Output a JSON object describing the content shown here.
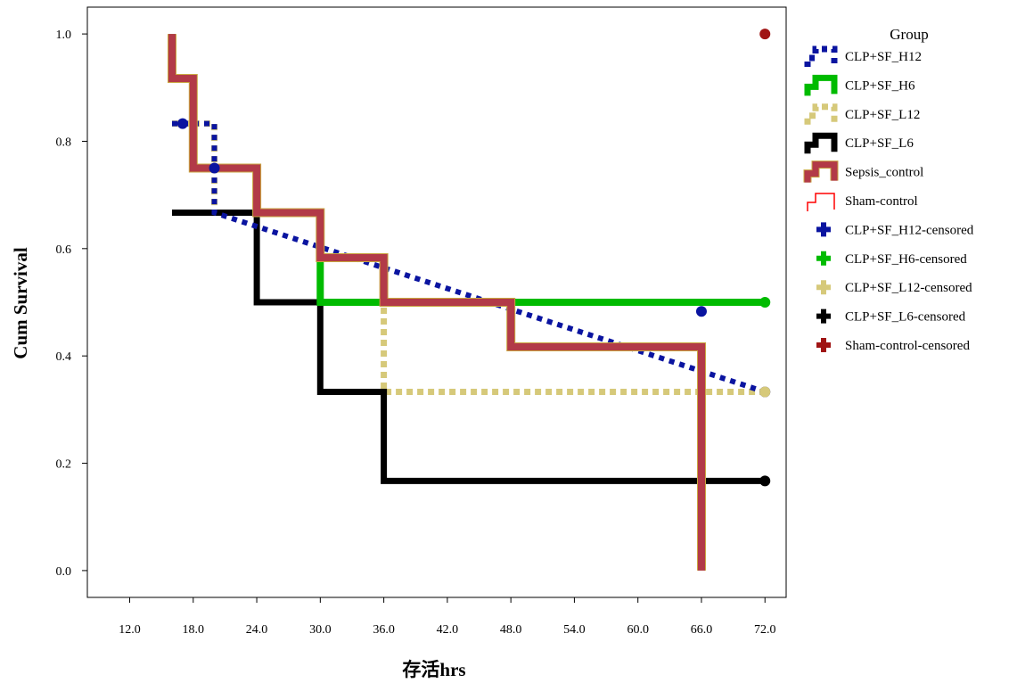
{
  "chart_data": {
    "type": "line",
    "subtype": "kaplan-meier",
    "title": "",
    "xlabel": "存活hrs",
    "ylabel": "Cum Survival",
    "xlim": [
      8,
      74
    ],
    "ylim": [
      -0.05,
      1.05
    ],
    "x_ticks": [
      "12.0",
      "18.0",
      "24.0",
      "30.0",
      "36.0",
      "42.0",
      "48.0",
      "54.0",
      "60.0",
      "66.0",
      "72.0"
    ],
    "y_ticks": [
      "0.0",
      "0.2",
      "0.4",
      "0.6",
      "0.8",
      "1.0"
    ],
    "grid": false,
    "legend_title": "Group",
    "legend_position": "right",
    "series": [
      {
        "name": "CLP+SF_H12",
        "color": "#0a14a0",
        "style": "dashed",
        "width": 6,
        "points": [
          [
            16,
            0.833
          ],
          [
            20,
            0.833
          ],
          [
            20,
            0.667
          ],
          [
            72,
            0.333
          ]
        ]
      },
      {
        "name": "CLP+SF_H6",
        "color": "#00bb00",
        "style": "solid",
        "width": 8,
        "points": [
          [
            16,
            1.0
          ],
          [
            16,
            0.917
          ],
          [
            18,
            0.917
          ],
          [
            18,
            0.75
          ],
          [
            24,
            0.75
          ],
          [
            24,
            0.667
          ],
          [
            30,
            0.667
          ],
          [
            30,
            0.5
          ],
          [
            72,
            0.5
          ]
        ]
      },
      {
        "name": "CLP+SF_L12",
        "color": "#d6c97a",
        "style": "dotted",
        "width": 7,
        "points": [
          [
            16,
            0.833
          ],
          [
            20,
            0.833
          ],
          [
            20,
            0.667
          ],
          [
            24,
            0.667
          ],
          [
            30,
            0.667
          ],
          [
            30,
            0.5
          ],
          [
            36,
            0.5
          ],
          [
            36,
            0.333
          ],
          [
            72,
            0.333
          ]
        ]
      },
      {
        "name": "CLP+SF_L6",
        "color": "#000000",
        "style": "solid",
        "width": 7,
        "points": [
          [
            16,
            0.667
          ],
          [
            24,
            0.667
          ],
          [
            24,
            0.5
          ],
          [
            30,
            0.5
          ],
          [
            30,
            0.333
          ],
          [
            36,
            0.333
          ],
          [
            36,
            0.167
          ],
          [
            72,
            0.167
          ]
        ]
      },
      {
        "name": "Sepsis_control",
        "color": "#b23a48",
        "style": "solid",
        "width": 8,
        "points": [
          [
            16,
            1.0
          ],
          [
            16,
            0.917
          ],
          [
            18,
            0.917
          ],
          [
            18,
            0.75
          ],
          [
            24,
            0.75
          ],
          [
            24,
            0.667
          ],
          [
            30,
            0.667
          ],
          [
            30,
            0.583
          ],
          [
            36,
            0.583
          ],
          [
            36,
            0.5
          ],
          [
            48,
            0.5
          ],
          [
            48,
            0.417
          ],
          [
            66,
            0.417
          ],
          [
            66,
            0.0
          ]
        ]
      },
      {
        "name": "Sham-control",
        "color": "#ff0000",
        "style": "solid",
        "width": 1,
        "points": [
          [
            72,
            1.0
          ]
        ]
      }
    ],
    "censored": [
      {
        "name": "CLP+SF_H12-censored",
        "color": "#0a14a0",
        "points": [
          [
            17,
            0.833
          ],
          [
            20,
            0.75
          ],
          [
            66,
            0.483
          ],
          [
            72,
            0.333
          ]
        ]
      },
      {
        "name": "CLP+SF_H6-censored",
        "color": "#00bb00",
        "points": [
          [
            72,
            0.5
          ]
        ]
      },
      {
        "name": "CLP+SF_L12-censored",
        "color": "#d6c97a",
        "points": [
          [
            72,
            0.333
          ]
        ]
      },
      {
        "name": "CLP+SF_L6-censored",
        "color": "#000000",
        "points": [
          [
            72,
            0.167
          ]
        ]
      },
      {
        "name": "Sham-control-censored",
        "color": "#a01414",
        "points": [
          [
            72,
            1.0
          ]
        ]
      }
    ]
  }
}
